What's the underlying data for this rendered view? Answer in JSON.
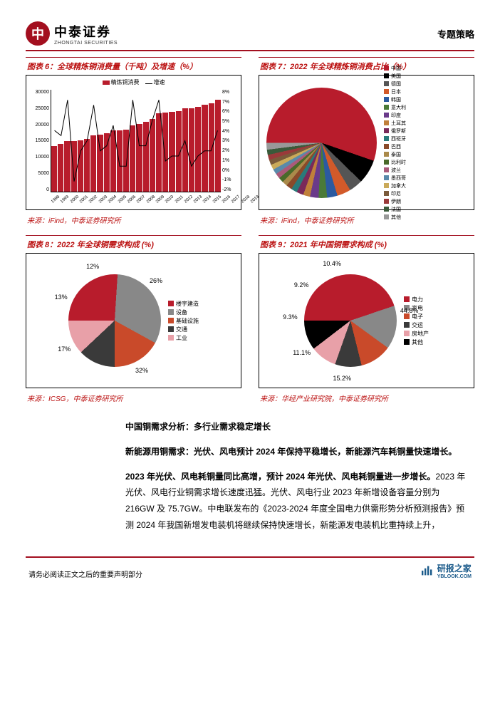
{
  "header": {
    "logo_cn": "中泰证券",
    "logo_en": "ZHONGTAI SECURITIES",
    "logo_glyph": "中",
    "right": "专题策略"
  },
  "chart6": {
    "title": "图表 6：全球精炼铜消费量（千吨）及增速（%）",
    "type": "bar+line",
    "legend_bar": "精炼铜消费",
    "legend_line": "增速",
    "bar_color": "#b81c2c",
    "line_color": "#000000",
    "y_left_ticks": [
      "30000",
      "25000",
      "20000",
      "15000",
      "10000",
      "5000",
      "0"
    ],
    "y_right_ticks": [
      "8%",
      "7%",
      "6%",
      "5%",
      "4%",
      "3%",
      "2%",
      "1%",
      "0%",
      "-1%",
      "-2%"
    ],
    "years": [
      "1998",
      "1999",
      "2000",
      "2001",
      "2002",
      "2003",
      "2004",
      "2005",
      "2006",
      "2007",
      "2008",
      "2009",
      "2010",
      "2011",
      "2012",
      "2013",
      "2014",
      "2015",
      "2016",
      "2017",
      "2018",
      "2019",
      "2020",
      "2021",
      "2022",
      "2023"
    ],
    "values": [
      13500,
      14000,
      15000,
      14800,
      15100,
      15500,
      16500,
      16800,
      17200,
      18000,
      18100,
      18200,
      19500,
      20000,
      20500,
      21500,
      23000,
      23200,
      23500,
      23800,
      24500,
      24600,
      25000,
      25500,
      26000,
      27000
    ],
    "growth": [
      4.0,
      3.5,
      7.0,
      -1.0,
      2.0,
      3.0,
      6.5,
      2.0,
      2.5,
      4.5,
      0.5,
      0.5,
      7.0,
      2.5,
      2.5,
      5.0,
      7.0,
      1.0,
      1.5,
      1.5,
      3.0,
      0.5,
      1.5,
      2.0,
      2.0,
      4.0
    ],
    "y_max": 30000,
    "growth_min": -2,
    "growth_max": 8,
    "source": "来源：iFind，中泰证券研究所"
  },
  "chart7": {
    "title": "图表 7：2022 年全球精炼铜消费占比（%）",
    "type": "pie",
    "pie_size": 155,
    "slices": [
      {
        "label": "中国",
        "value": 55,
        "color": "#b81c2c"
      },
      {
        "label": "美国",
        "value": 7,
        "color": "#000000"
      },
      {
        "label": "德国",
        "value": 4,
        "color": "#555555"
      },
      {
        "label": "日本",
        "value": 4,
        "color": "#d25a2a"
      },
      {
        "label": "韩国",
        "value": 3,
        "color": "#2b5aa0"
      },
      {
        "label": "意大利",
        "value": 2.5,
        "color": "#4a7a38"
      },
      {
        "label": "印度",
        "value": 2.5,
        "color": "#6a3a8a"
      },
      {
        "label": "土耳其",
        "value": 2,
        "color": "#c0803a"
      },
      {
        "label": "俄罗斯",
        "value": 2,
        "color": "#7a2a5a"
      },
      {
        "label": "西班牙",
        "value": 1.8,
        "color": "#2a7a7a"
      },
      {
        "label": "巴西",
        "value": 1.7,
        "color": "#8a4a2a"
      },
      {
        "label": "泰国",
        "value": 1.5,
        "color": "#aa8a4a"
      },
      {
        "label": "比利时",
        "value": 1.5,
        "color": "#4a6a2a"
      },
      {
        "label": "波兰",
        "value": 1.5,
        "color": "#aa5a7a"
      },
      {
        "label": "墨西哥",
        "value": 1.5,
        "color": "#5a8aaa"
      },
      {
        "label": "加拿大",
        "value": 1.5,
        "color": "#caaa5a"
      },
      {
        "label": "印尼",
        "value": 1.5,
        "color": "#7a5a3a"
      },
      {
        "label": "伊朗",
        "value": 1.5,
        "color": "#9a3a3a"
      },
      {
        "label": "法国",
        "value": 1.5,
        "color": "#3a5a3a"
      },
      {
        "label": "其他",
        "value": 2,
        "color": "#999999"
      }
    ],
    "source": "来源：iFind，中泰证券研究所"
  },
  "chart8": {
    "title": "图表 8：2022 年全球铜需求构成 (%)",
    "type": "pie",
    "pie_size": 130,
    "slices": [
      {
        "label": "楼宇建造",
        "value": 26,
        "color": "#b81c2c",
        "label_pos": "right"
      },
      {
        "label": "设备",
        "value": 32,
        "color": "#888888",
        "label_pos": "bottom"
      },
      {
        "label": "基础设施",
        "value": 17,
        "color": "#c94a2a",
        "label_pos": "left"
      },
      {
        "label": "交通",
        "value": 13,
        "color": "#3a3a3a",
        "label_pos": "left"
      },
      {
        "label": "工业",
        "value": 12,
        "color": "#e8a0a8",
        "label_pos": "top"
      }
    ],
    "source": "来源：ICSG，中泰证券研究所"
  },
  "chart9": {
    "title": "图表 9：2021 年中国铜需求构成 (%)",
    "type": "pie",
    "pie_size": 130,
    "slices": [
      {
        "label": "电力",
        "value": 44.8,
        "color": "#b81c2c"
      },
      {
        "label": "家电",
        "value": 15.2,
        "color": "#888888"
      },
      {
        "label": "电子",
        "value": 11.1,
        "color": "#c94a2a"
      },
      {
        "label": "交运",
        "value": 9.3,
        "color": "#3a3a3a"
      },
      {
        "label": "房地产",
        "value": 9.2,
        "color": "#e8a0a8"
      },
      {
        "label": "其他",
        "value": 10.4,
        "color": "#000000"
      }
    ],
    "source": "来源：华经产业研究院，中泰证券研究所"
  },
  "body": {
    "h1": "中国铜需求分析：多行业需求稳定增长",
    "h2": "新能源用铜需求：光伏、风电预计 2024 年保持平稳增长，新能源汽车耗铜量快速增长。",
    "p1": "2023 年光伏、风电耗铜量同比高增，预计 2024 年光伏、风电耗铜量进一步增长。",
    "p1b": "2023 年光伏、风电行业铜需求增长速度迅猛。光伏、风电行业 2023 年新增设备容量分别为 216GW 及 75.7GW。中电联发布的《2023-2024 年度全国电力供需形势分析预测报告》预测 2024 年我国新增发电装机将继续保持快速增长，新能源发电装机比重持续上升，"
  },
  "footer": {
    "left": "请务必阅读正文之后的重要声明部分",
    "watermark": "研报之家",
    "watermark_url": "YBLOOK.COM"
  }
}
